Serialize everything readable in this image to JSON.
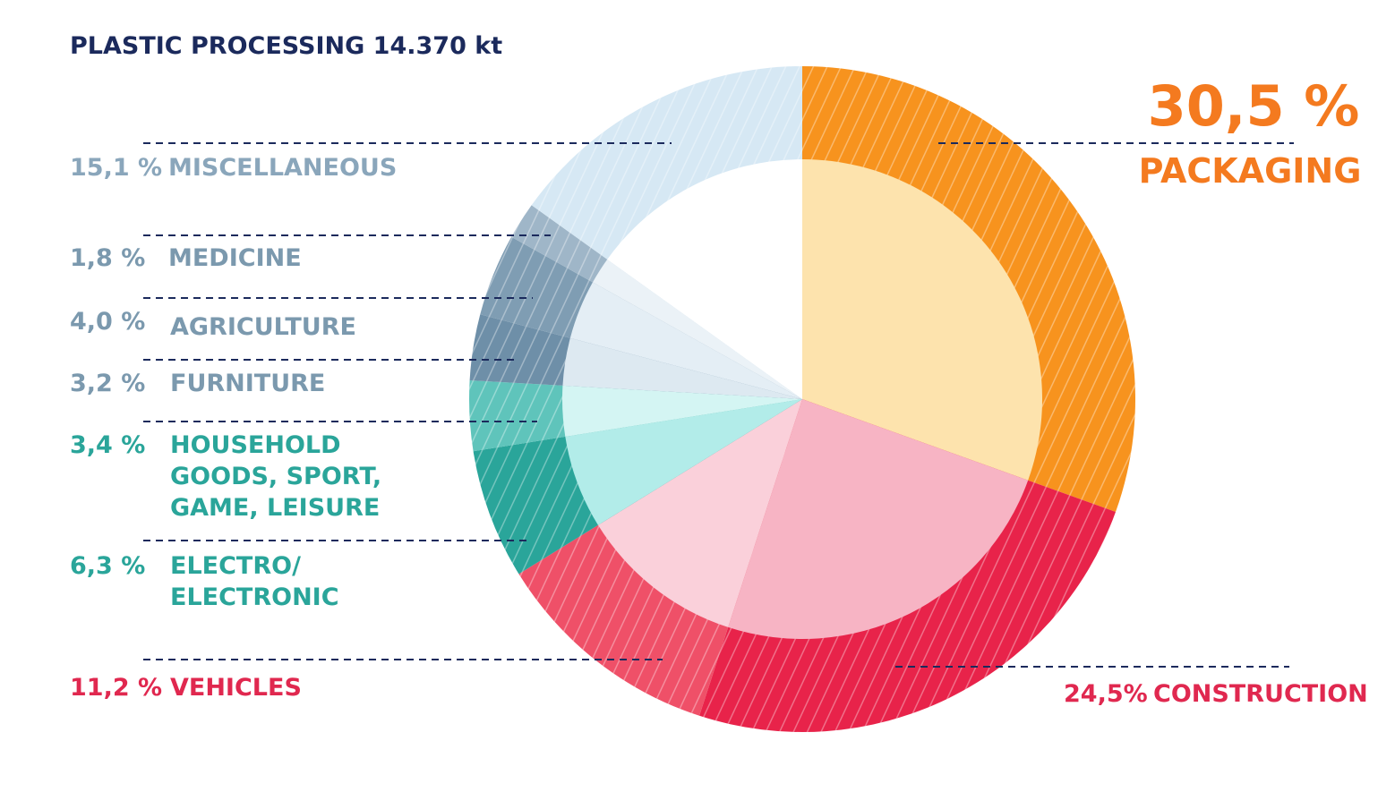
{
  "chart_data": {
    "type": "pie",
    "title": "PLASTIC PROCESSING 14.370 kt",
    "slices": [
      {
        "label": "PACKAGING",
        "pct_label": "30,5 %",
        "value": 30.5,
        "color": "#f7931e",
        "inner_color": "#fde3ad",
        "label_color": "#f47a1f"
      },
      {
        "label": "CONSTRUCTION",
        "pct_label": "24,5%",
        "value": 24.5,
        "color": "#e8234a",
        "inner_color": "#f7b4c4",
        "label_color": "#e0284f"
      },
      {
        "label": "VEHICLES",
        "pct_label": "11,2 %",
        "value": 11.2,
        "color": "#ef5068",
        "inner_color": "#fad0da",
        "label_color": "#e0284f"
      },
      {
        "label": "ELECTRO/ ELECTRONIC",
        "lines": [
          "ELECTRO/",
          "ELECTRONIC"
        ],
        "pct_label": "6,3 %",
        "value": 6.3,
        "color": "#2aa59a",
        "inner_color": "#b2ece9",
        "label_color": "#2aa59a"
      },
      {
        "label": "HOUSEHOLD GOODS, SPORT, GAME, LEISURE",
        "lines": [
          "HOUSEHOLD",
          "GOODS, SPORT,",
          "GAME, LEISURE"
        ],
        "pct_label": "3,4 %",
        "value": 3.4,
        "color": "#5fc4bb",
        "inner_color": "#d4f5f3",
        "label_color": "#2aa59a"
      },
      {
        "label": "FURNITURE",
        "pct_label": "3,2 %",
        "value": 3.2,
        "color": "#6e8fa8",
        "inner_color": "#dde9f1",
        "label_color": "#7b99ae"
      },
      {
        "label": "AGRICULTURE",
        "pct_label": "4,0 %",
        "value": 4.0,
        "color": "#7f9db3",
        "inner_color": "#e4eef5",
        "label_color": "#7b99ae"
      },
      {
        "label": "MEDICINE",
        "pct_label": "1,8 %",
        "value": 1.8,
        "color": "#9fb6c8",
        "inner_color": "#ebf2f7",
        "label_color": "#7b99ae"
      },
      {
        "label": "MISCELLANEOUS",
        "pct_label": "15,1 %",
        "value": 15.1,
        "color": "#d6e8f4",
        "inner_color": "#ffffff",
        "label_color": "#8aa6bb"
      }
    ],
    "title_color": "#1b2a5c",
    "leader_color": "#1b2a5c"
  }
}
